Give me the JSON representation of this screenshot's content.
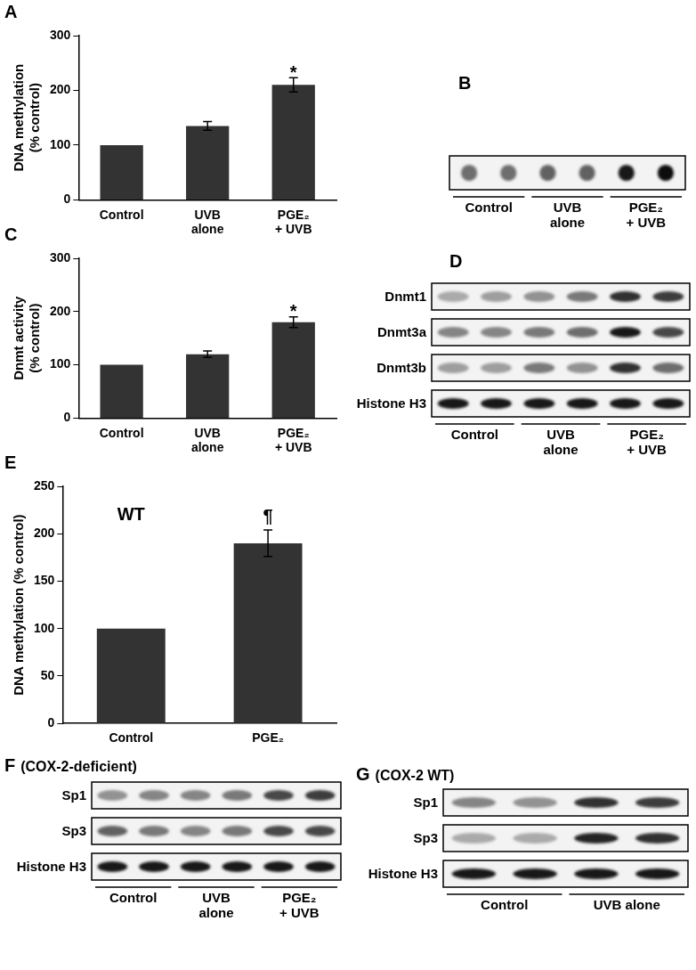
{
  "chart_data": [
    {
      "type": "bar",
      "title": "A",
      "categories": [
        "Control",
        [
          "UVB",
          "alone"
        ],
        [
          "PGE₂",
          "+ UVB"
        ]
      ],
      "values": [
        100,
        135,
        210
      ],
      "errors": [
        null,
        8,
        13
      ],
      "color": "#333333",
      "y_label": [
        "DNA methylation",
        "(% control)"
      ],
      "ylim": [
        0,
        300
      ],
      "yticks": [
        0,
        100,
        200,
        300
      ],
      "grid": false,
      "annotations": [
        {
          "text": "*",
          "category": [
            "PGE₂",
            "+ UVB"
          ],
          "y": 228
        }
      ]
    },
    {
      "type": "bar",
      "title": "C",
      "categories": [
        "Control",
        [
          "UVB",
          "alone"
        ],
        [
          "PGE₂",
          "+ UVB"
        ]
      ],
      "values": [
        100,
        120,
        180
      ],
      "errors": [
        null,
        6,
        10
      ],
      "color": "#333333",
      "y_label": [
        "Dnmt activity",
        "(% control)"
      ],
      "ylim": [
        0,
        300
      ],
      "yticks": [
        0,
        100,
        200,
        300
      ],
      "grid": false,
      "annotations": [
        {
          "text": "*",
          "category": [
            "PGE₂",
            "+ UVB"
          ],
          "y": 196
        }
      ]
    },
    {
      "type": "bar",
      "title": "E",
      "categories": [
        "Control",
        "PGE₂"
      ],
      "values": [
        100,
        190
      ],
      "errors": [
        null,
        14
      ],
      "color": "#333333",
      "y_label": [
        "DNA methylation (% control)"
      ],
      "ylim": [
        0,
        250
      ],
      "yticks": [
        0,
        50,
        100,
        150,
        200,
        250
      ],
      "grid": false,
      "annotations": [
        {
          "text": "WT",
          "category": "Control",
          "y": 210
        },
        {
          "text": "¶",
          "category": "PGE₂",
          "y": 208
        }
      ]
    }
  ],
  "blots": [
    {
      "type": "dot blot",
      "title": "B",
      "lanes": [
        "Control",
        [
          "UVB",
          "alone"
        ],
        [
          "PGE₂",
          "+ UVB"
        ]
      ],
      "rows": [
        {
          "intensity": [
            0.55,
            0.55,
            0.6,
            0.6,
            0.9,
            0.95
          ]
        }
      ]
    },
    {
      "type": "western blot",
      "title": "D",
      "lanes": [
        "Control",
        [
          "UVB",
          "alone"
        ],
        [
          "PGE₂",
          "+ UVB"
        ]
      ],
      "rows": [
        {
          "label": "Dnmt1",
          "intensity": [
            0.3,
            0.35,
            0.4,
            0.5,
            0.8,
            0.75
          ]
        },
        {
          "label": "Dnmt3a",
          "intensity": [
            0.45,
            0.45,
            0.5,
            0.55,
            0.9,
            0.7
          ]
        },
        {
          "label": "Dnmt3b",
          "intensity": [
            0.35,
            0.35,
            0.5,
            0.4,
            0.8,
            0.55
          ]
        },
        {
          "label": "Histone H3",
          "intensity": [
            0.9,
            0.9,
            0.9,
            0.9,
            0.9,
            0.9
          ]
        }
      ]
    },
    {
      "type": "western blot",
      "title": "F",
      "subtitle": "(COX-2-deficient)",
      "lanes": [
        "Control",
        [
          "UVB",
          "alone"
        ],
        [
          "PGE₂",
          "+ UVB"
        ]
      ],
      "rows": [
        {
          "label": "Sp1",
          "intensity": [
            0.4,
            0.45,
            0.45,
            0.5,
            0.7,
            0.75
          ]
        },
        {
          "label": "Sp3",
          "intensity": [
            0.6,
            0.5,
            0.45,
            0.5,
            0.7,
            0.7
          ]
        },
        {
          "label": "Histone H3",
          "intensity": [
            0.9,
            0.9,
            0.9,
            0.9,
            0.9,
            0.9
          ]
        }
      ]
    },
    {
      "type": "western blot",
      "title": "G",
      "subtitle": "(COX-2 WT)",
      "lanes": [
        "Control",
        "UVB alone"
      ],
      "rows": [
        {
          "label": "Sp1",
          "intensity": [
            0.45,
            0.4,
            0.8,
            0.75
          ]
        },
        {
          "label": "Sp3",
          "intensity": [
            0.3,
            0.3,
            0.85,
            0.8
          ]
        },
        {
          "label": "Histone H3",
          "intensity": [
            0.9,
            0.9,
            0.9,
            0.9
          ]
        }
      ]
    }
  ]
}
